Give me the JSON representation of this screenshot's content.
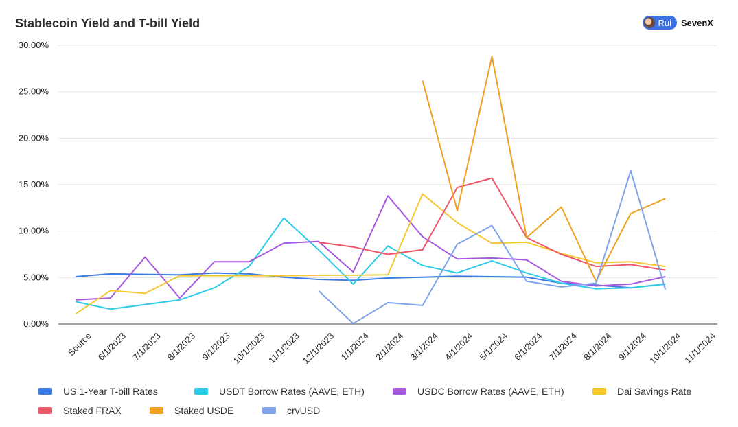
{
  "header": {
    "title": "Stablecoin Yield and T-bill Yield",
    "badge_label": "Rui",
    "brand": "SevenX"
  },
  "chart_data": {
    "type": "line",
    "title": "Stablecoin Yield and T-bill Yield",
    "categories": [
      "Source",
      "6/1/2023",
      "7/1/2023",
      "8/1/2023",
      "9/1/2023",
      "10/1/2023",
      "11/1/2023",
      "12/1/2023",
      "1/1/2024",
      "2/1/2024",
      "3/1/2024",
      "4/1/2024",
      "5/1/2024",
      "6/1/2024",
      "7/1/2024",
      "8/1/2024",
      "9/1/2024",
      "10/1/2024",
      "11/1/2024"
    ],
    "y_ticks": [
      "0.00%",
      "5.00%",
      "10.00%",
      "15.00%",
      "20.00%",
      "25.00%",
      "30.00%"
    ],
    "ylim": [
      0,
      30
    ],
    "grid": true,
    "legend_position": "bottom",
    "series": [
      {
        "name": "US 1-Year T-bill Rates",
        "color": "#3b7be6",
        "points": [
          [
            0.5,
            5.1
          ],
          [
            1.5,
            5.4
          ],
          [
            2.5,
            5.35
          ],
          [
            3.5,
            5.3
          ],
          [
            4.5,
            5.5
          ],
          [
            5.5,
            5.4
          ],
          [
            6.5,
            5.05
          ],
          [
            7.5,
            4.8
          ],
          [
            8.5,
            4.7
          ],
          [
            9.5,
            4.95
          ],
          [
            10.5,
            5.05
          ],
          [
            11.5,
            5.15
          ],
          [
            12.5,
            5.1
          ],
          [
            13.5,
            5.05
          ],
          [
            14.5,
            4.4
          ],
          [
            15.5,
            4.2
          ],
          [
            16.5,
            3.9
          ],
          [
            17.5,
            4.3
          ]
        ]
      },
      {
        "name": "USDT Borrow Rates (AAVE, ETH)",
        "color": "#2ecbe8",
        "points": [
          [
            0.5,
            2.4
          ],
          [
            1.5,
            1.6
          ],
          [
            2.5,
            2.1
          ],
          [
            3.5,
            2.6
          ],
          [
            4.5,
            3.9
          ],
          [
            5.5,
            6.2
          ],
          [
            6.5,
            11.4
          ],
          [
            7.5,
            8.0
          ],
          [
            8.5,
            4.3
          ],
          [
            9.5,
            8.4
          ],
          [
            10.5,
            6.3
          ],
          [
            11.5,
            5.5
          ],
          [
            12.5,
            6.8
          ],
          [
            13.5,
            5.5
          ],
          [
            14.5,
            4.4
          ],
          [
            15.5,
            3.8
          ],
          [
            16.5,
            3.9
          ],
          [
            17.5,
            4.3
          ]
        ]
      },
      {
        "name": "USDC Borrow Rates (AAVE, ETH)",
        "color": "#a659e0",
        "points": [
          [
            0.5,
            2.6
          ],
          [
            1.5,
            2.8
          ],
          [
            2.5,
            7.2
          ],
          [
            3.5,
            2.8
          ],
          [
            4.5,
            6.7
          ],
          [
            5.5,
            6.7
          ],
          [
            6.5,
            8.7
          ],
          [
            7.5,
            8.9
          ],
          [
            8.5,
            5.6
          ],
          [
            9.5,
            13.8
          ],
          [
            10.5,
            9.4
          ],
          [
            11.5,
            7.0
          ],
          [
            12.5,
            7.1
          ],
          [
            13.5,
            6.9
          ],
          [
            14.5,
            4.6
          ],
          [
            15.5,
            4.1
          ],
          [
            16.5,
            4.3
          ],
          [
            17.5,
            5.1
          ]
        ]
      },
      {
        "name": "Dai Savings Rate",
        "color": "#f5c730",
        "points": [
          [
            0.5,
            1.1
          ],
          [
            1.5,
            3.6
          ],
          [
            2.5,
            3.3
          ],
          [
            3.5,
            5.2
          ],
          [
            4.5,
            5.2
          ],
          [
            5.5,
            5.2
          ],
          [
            6.5,
            5.2
          ],
          [
            7.5,
            5.25
          ],
          [
            8.5,
            5.25
          ],
          [
            9.5,
            5.3
          ],
          [
            10.5,
            14.0
          ],
          [
            11.5,
            10.9
          ],
          [
            12.5,
            8.7
          ],
          [
            13.5,
            8.8
          ],
          [
            14.5,
            7.6
          ],
          [
            15.5,
            6.6
          ],
          [
            16.5,
            6.7
          ],
          [
            17.5,
            6.2
          ]
        ]
      },
      {
        "name": "Staked FRAX",
        "color": "#ee5566",
        "points": [
          [
            7.5,
            8.8
          ],
          [
            8.5,
            8.3
          ],
          [
            9.5,
            7.5
          ],
          [
            10.5,
            8.0
          ],
          [
            11.5,
            14.7
          ],
          [
            12.5,
            15.7
          ],
          [
            13.5,
            9.3
          ],
          [
            14.5,
            7.5
          ],
          [
            15.5,
            6.2
          ],
          [
            16.5,
            6.4
          ],
          [
            17.5,
            5.8
          ]
        ]
      },
      {
        "name": "Staked USDE",
        "color": "#f0a020",
        "points": [
          [
            10.5,
            26.2
          ],
          [
            11.5,
            12.2
          ],
          [
            12.5,
            28.8
          ],
          [
            13.5,
            9.3
          ],
          [
            14.5,
            12.6
          ],
          [
            15.5,
            4.6
          ],
          [
            16.5,
            11.9
          ],
          [
            17.5,
            13.5
          ]
        ]
      },
      {
        "name": "crvUSD",
        "color": "#7fa3ea",
        "points": [
          [
            7.5,
            3.6
          ],
          [
            8.5,
            0.05
          ],
          [
            9.5,
            2.3
          ],
          [
            10.5,
            2.0
          ],
          [
            11.5,
            8.6
          ],
          [
            12.5,
            10.6
          ],
          [
            13.5,
            4.6
          ],
          [
            14.5,
            4.0
          ],
          [
            15.5,
            4.4
          ],
          [
            16.5,
            16.5
          ],
          [
            17.5,
            3.7
          ]
        ]
      }
    ]
  }
}
